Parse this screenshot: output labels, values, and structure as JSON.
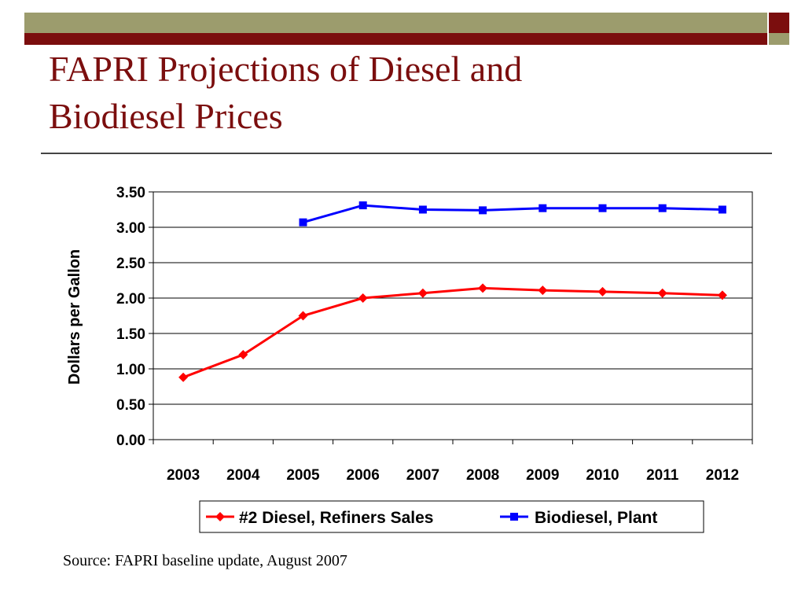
{
  "slide": {
    "title_lines": [
      "FAPRI Projections of Diesel and",
      "Biodiesel Prices"
    ],
    "source": "Source: FAPRI baseline update, August 2007"
  },
  "colors": {
    "accent_dark_red": "#7b0e0e",
    "accent_olive": "#9c9c6d",
    "diesel_series": "#ff0000",
    "biodiesel_series": "#0000ff"
  },
  "chart_data": {
    "type": "line",
    "ylabel": "Dollars per Gallon",
    "xlabel": "",
    "categories": [
      "2003",
      "2004",
      "2005",
      "2006",
      "2007",
      "2008",
      "2009",
      "2010",
      "2011",
      "2012"
    ],
    "ylim": [
      0,
      3.5
    ],
    "yticks": [
      "0.00",
      "0.50",
      "1.00",
      "1.50",
      "2.00",
      "2.50",
      "3.00",
      "3.50"
    ],
    "grid": "horizontal",
    "legend_position": "bottom",
    "series": [
      {
        "name": "#2 Diesel, Refiners Sales",
        "marker": "diamond",
        "color": "#ff0000",
        "values": [
          0.88,
          1.2,
          1.75,
          2.0,
          2.07,
          2.14,
          2.11,
          2.09,
          2.07,
          2.04
        ]
      },
      {
        "name": "Biodiesel, Plant",
        "marker": "square",
        "color": "#0000ff",
        "values": [
          null,
          null,
          3.07,
          3.31,
          3.25,
          3.24,
          3.27,
          3.27,
          3.27,
          3.25
        ]
      }
    ]
  }
}
